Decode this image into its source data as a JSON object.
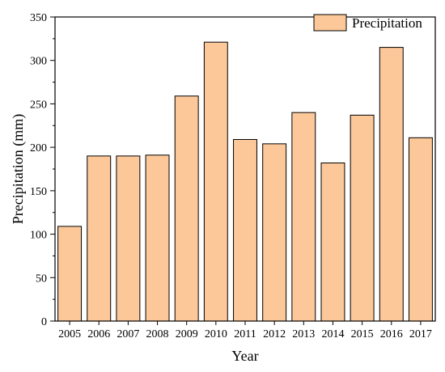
{
  "chart_data": {
    "type": "bar",
    "categories": [
      "2005",
      "2006",
      "2007",
      "2008",
      "2009",
      "2010",
      "2011",
      "2012",
      "2013",
      "2014",
      "2015",
      "2016",
      "2017"
    ],
    "series": [
      {
        "name": "Precipitation",
        "values": [
          109,
          190,
          190,
          191,
          259,
          321,
          209,
          204,
          240,
          182,
          237,
          315,
          211
        ]
      }
    ],
    "title": "",
    "xlabel": "Year",
    "ylabel": "Precipitation (mm)",
    "ylim": [
      0,
      350
    ],
    "yticks": [
      0,
      50,
      100,
      150,
      200,
      250,
      300,
      350
    ],
    "grid": false,
    "legend_position": "top-right"
  },
  "colors": {
    "bar_fill": "#fcc89a",
    "bar_stroke": "#000000",
    "axis": "#000000"
  }
}
